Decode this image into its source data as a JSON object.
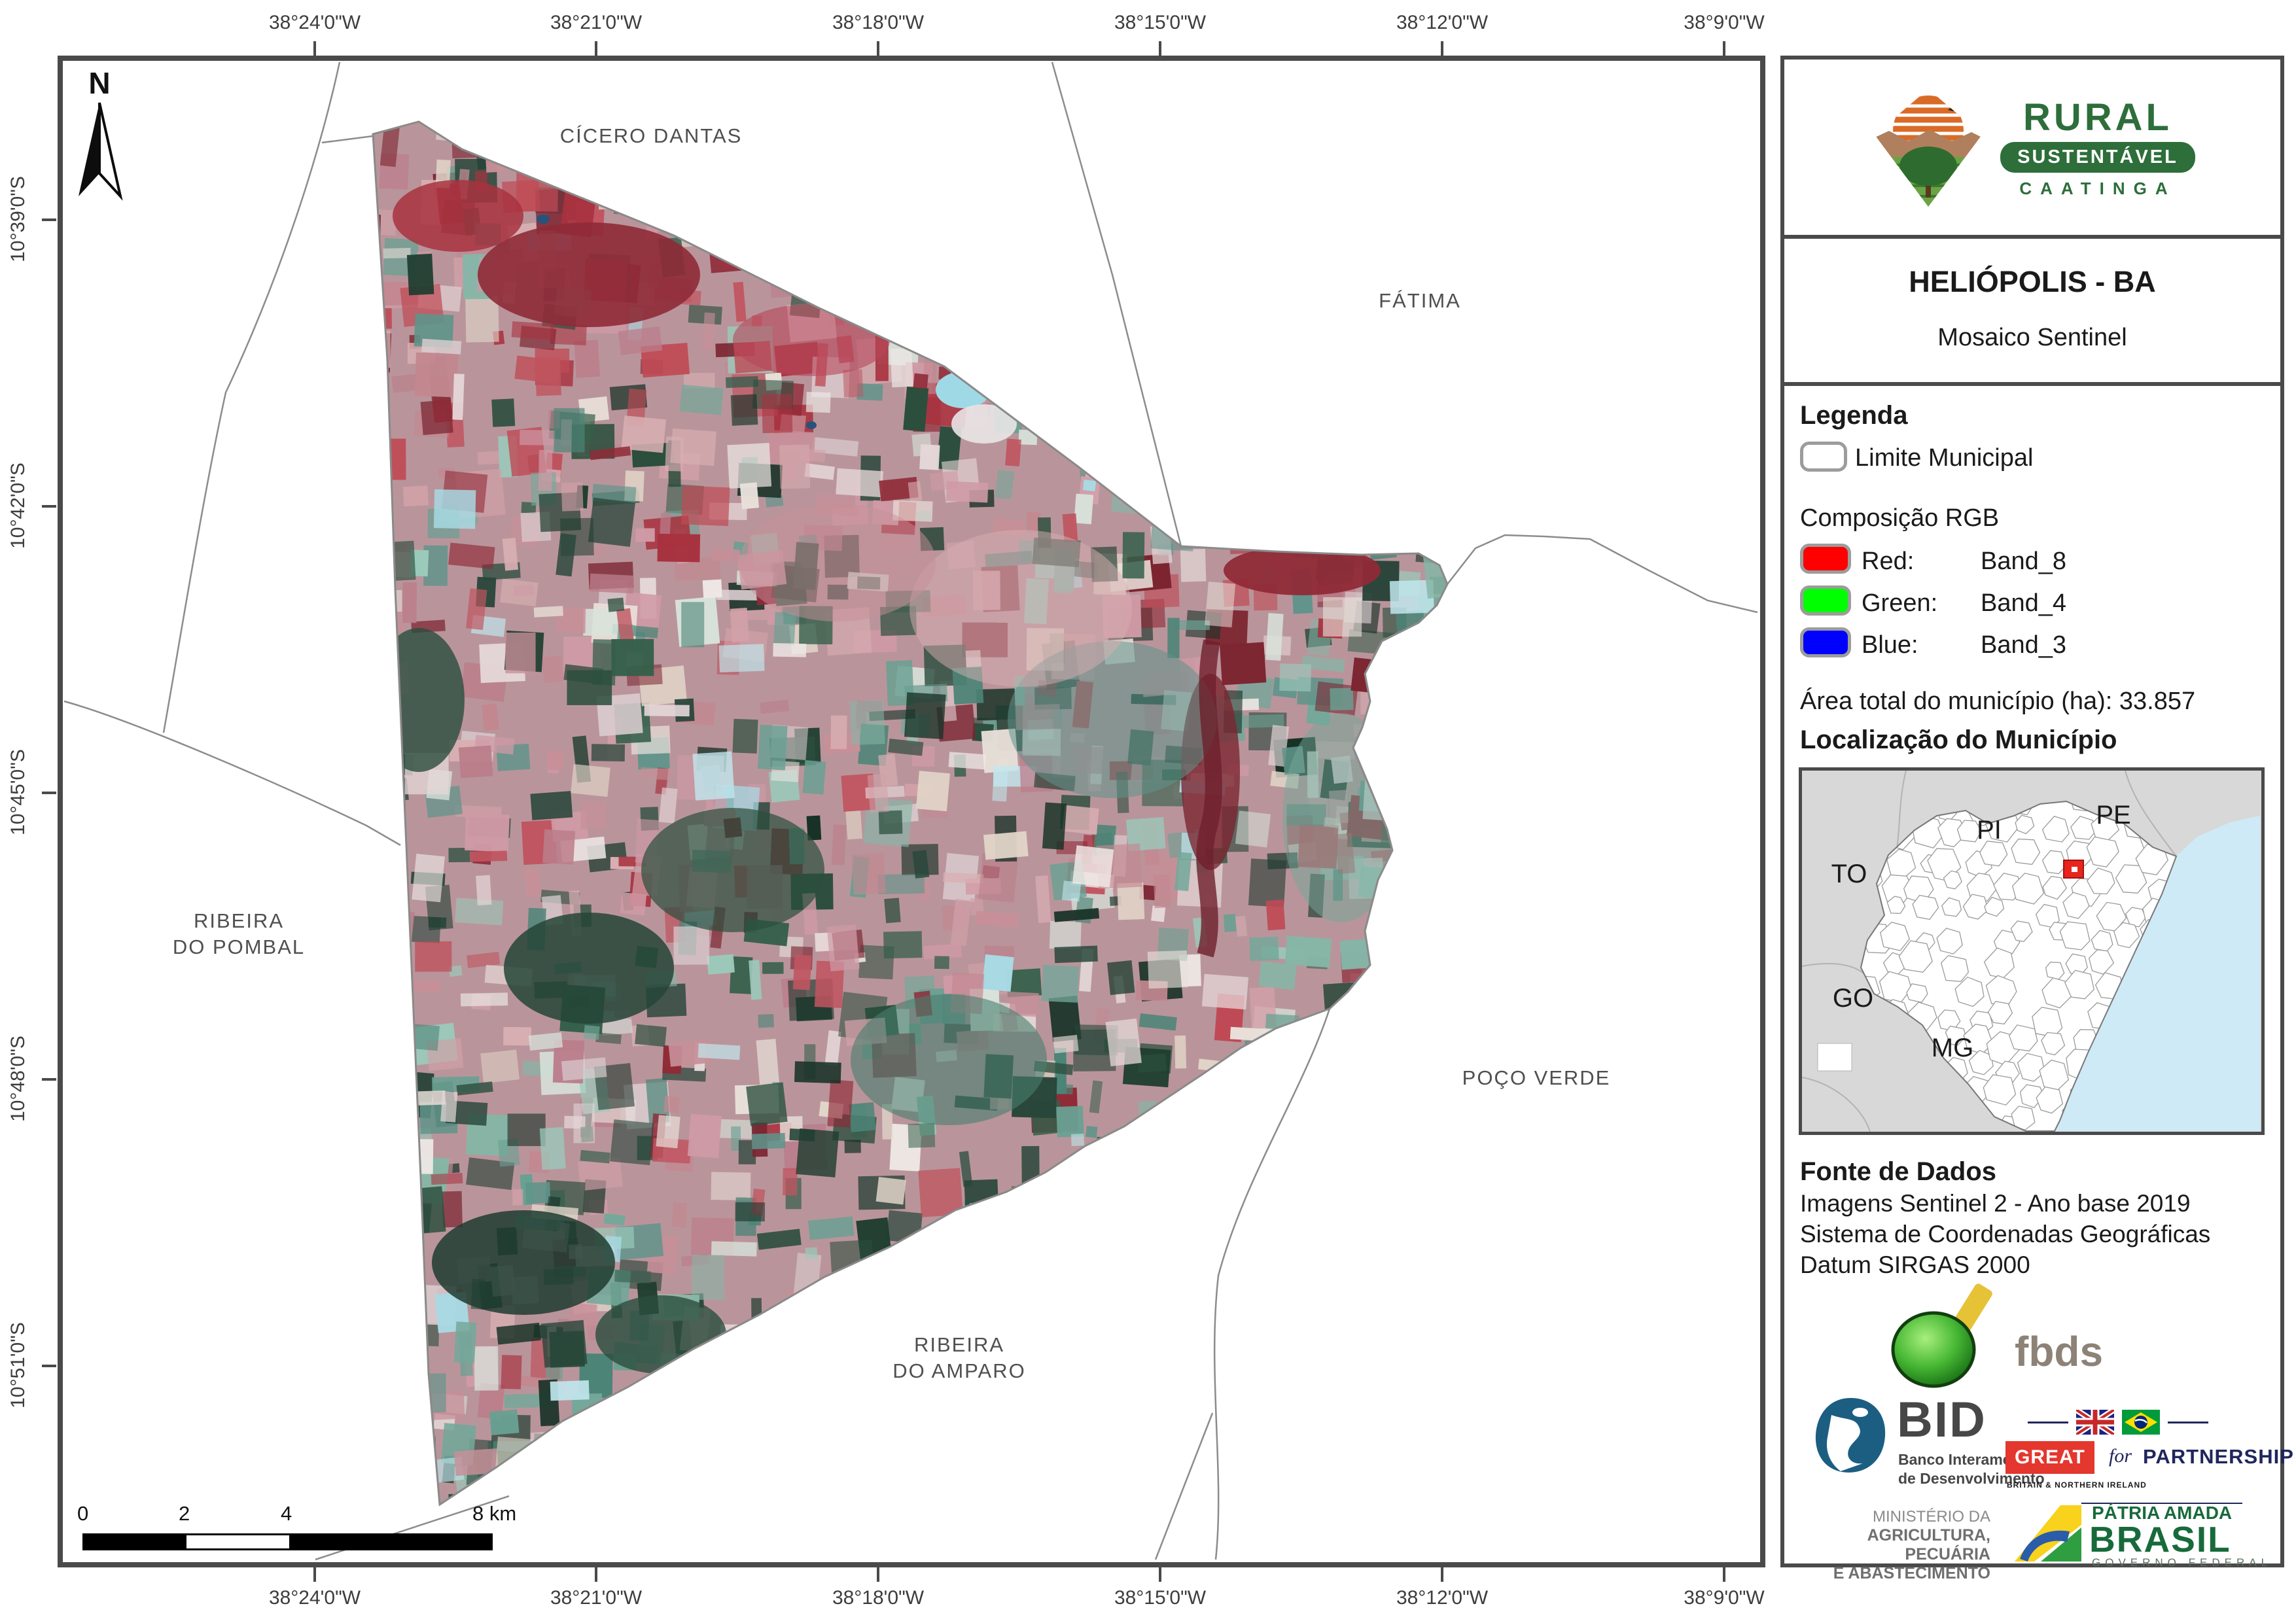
{
  "page": {
    "title": "HELIÓPOLIS - BA"
  },
  "map": {
    "x_labels": [
      "38°24'0\"W",
      "38°21'0\"W",
      "38°18'0\"W",
      "38°15'0\"W",
      "38°12'0\"W",
      "38°9'0\"W"
    ],
    "y_labels": [
      "10°39'0\"S",
      "10°42'0\"S",
      "10°45'0\"S",
      "10°48'0\"S",
      "10°51'0\"S"
    ],
    "north_label": "N",
    "place_labels": {
      "top": "CÍCERO DANTAS",
      "right": "FÁTIMA",
      "left_line1": "RIBEIRA",
      "left_line2": "DO POMBAL",
      "bottom_right": "POÇO VERDE",
      "bottom_line1": "RIBEIRA",
      "bottom_line2": "DO AMPARO"
    },
    "scalebar": {
      "labels": [
        "0",
        "2",
        "4",
        "8 km"
      ]
    }
  },
  "sidebar": {
    "brand": {
      "name_top": "RURAL",
      "name_mid": "SUSTENTÁVEL",
      "name_bottom": "CAATINGA"
    },
    "title": "HELIÓPOLIS - BA",
    "subtitle": "Mosaico Sentinel",
    "legend": {
      "heading": "Legenda",
      "limite_label": "Limite Municipal",
      "rgb_heading": "Composição RGB",
      "rows": [
        {
          "channel": "Red:",
          "band": "Band_8",
          "color": "#ff0000"
        },
        {
          "channel": "Green:",
          "band": "Band_4",
          "color": "#00ff00"
        },
        {
          "channel": "Blue:",
          "band": "Band_3",
          "color": "#0000ff"
        }
      ],
      "area_label": "Área total do município (ha): 33.857"
    },
    "location": {
      "heading": "Localização do Município",
      "states": [
        "PI",
        "PE",
        "TO",
        "GO",
        "MG"
      ]
    },
    "fonte": {
      "heading": "Fonte de Dados",
      "lines": [
        "Imagens Sentinel 2 - Ano base 2019",
        "Sistema de Coordenadas Geográficas",
        "Datum SIRGAS 2000"
      ]
    },
    "partners": {
      "fbds": "fbds",
      "bid": "BID",
      "bid_line1": "Banco Interamericano",
      "bid_line2": "de Desenvolvimento",
      "great": "GREAT",
      "great_sub": "BRITAIN & NORTHERN IRELAND",
      "great_for": "for",
      "partnership": "PARTNERSHIP",
      "mapa_line1": "MINISTÉRIO DA",
      "mapa_line2": "AGRICULTURA, PECUÁRIA",
      "mapa_line3": "E ABASTECIMENTO",
      "gov_line1": "PÁTRIA AMADA",
      "gov_line2": "BRASIL",
      "gov_line3": "GOVERNO FEDERAL"
    },
    "colors": {
      "brand_green": "#2d6e3a",
      "great_red": "#e4372e",
      "partnership_navy": "#20265c",
      "gov_green": "#186a3b",
      "marker_red": "#e8241d"
    }
  }
}
